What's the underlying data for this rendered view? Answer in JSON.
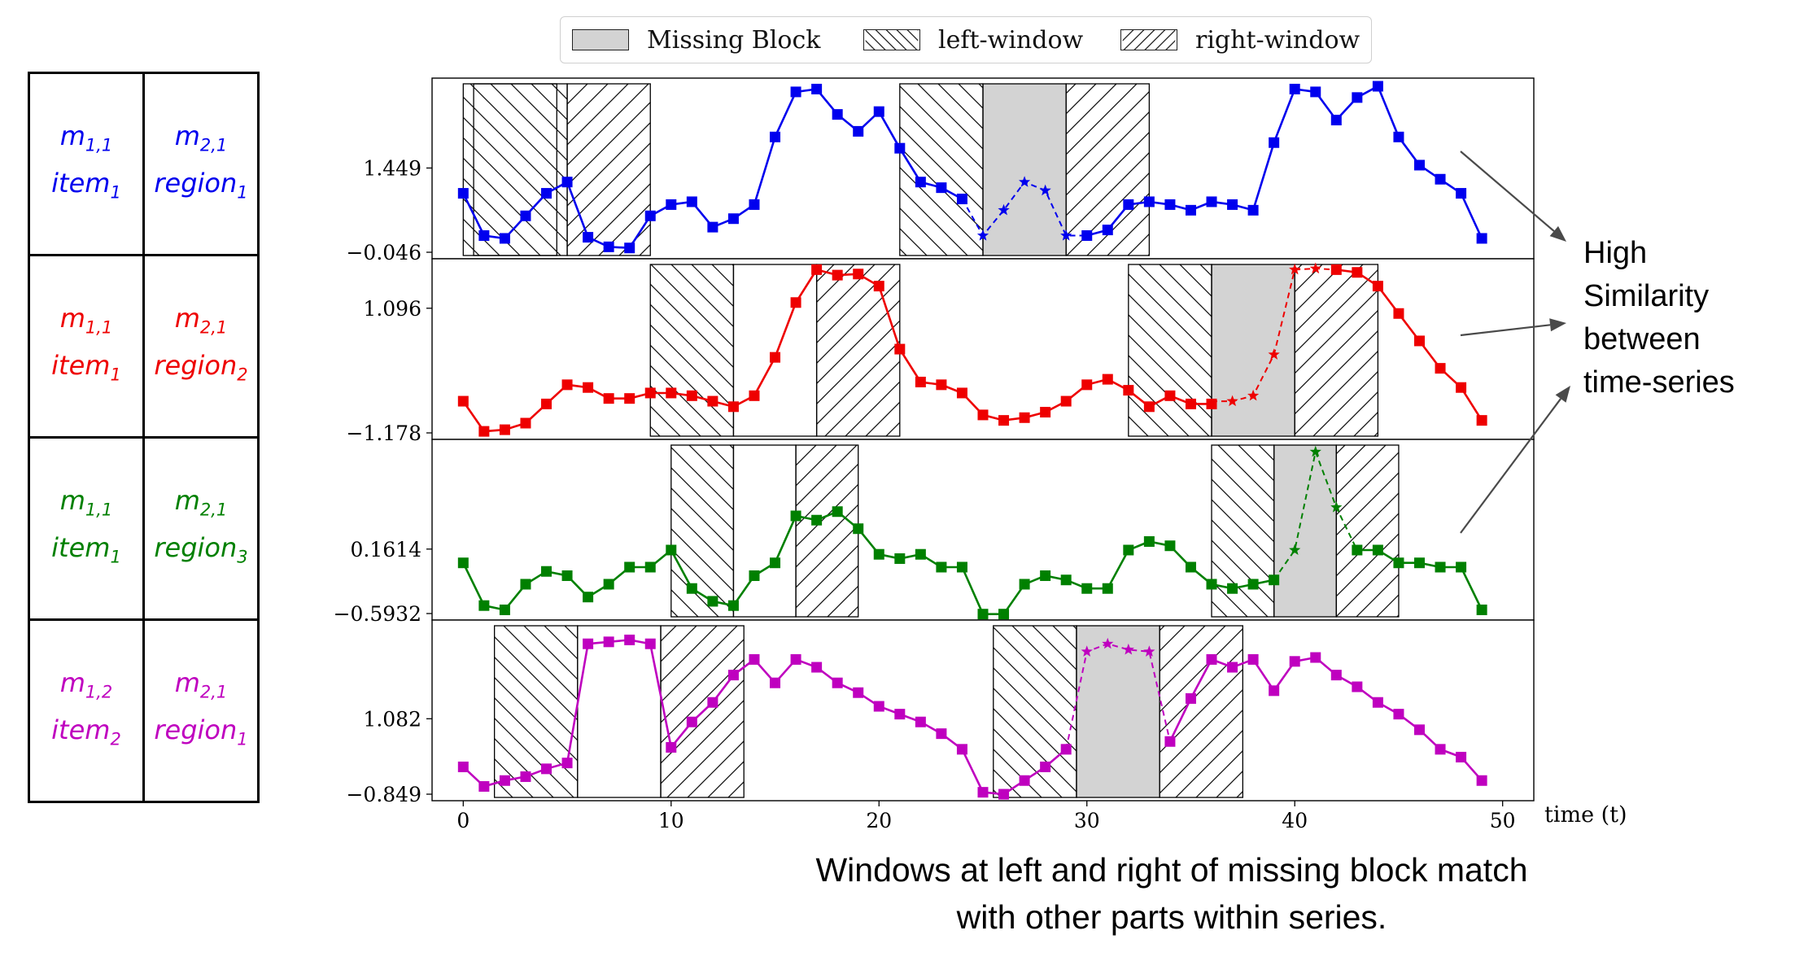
{
  "legend": {
    "missing_label": "Missing Block",
    "left_label": "left-window",
    "right_label": "right-window",
    "missing_color": "#d3d3d3"
  },
  "table": {
    "rows": [
      {
        "m1": "m",
        "m1_sub": "1,1",
        "item": "item",
        "item_sub": "1",
        "m2": "m",
        "m2_sub": "2,1",
        "region": "region",
        "region_sub": "1",
        "color": "#0000ee"
      },
      {
        "m1": "m",
        "m1_sub": "1,1",
        "item": "item",
        "item_sub": "1",
        "m2": "m",
        "m2_sub": "2,1",
        "region": "region",
        "region_sub": "2",
        "color": "#ee0000"
      },
      {
        "m1": "m",
        "m1_sub": "1,1",
        "item": "item",
        "item_sub": "1",
        "m2": "m",
        "m2_sub": "2,1",
        "region": "region",
        "region_sub": "3",
        "color": "#008000"
      },
      {
        "m1": "m",
        "m1_sub": "1,2",
        "item": "item",
        "item_sub": "2",
        "m2": "m",
        "m2_sub": "2,1",
        "region": "region",
        "region_sub": "1",
        "color": "#bf00bf"
      }
    ]
  },
  "annotation": {
    "lines": [
      "High",
      "Similarity",
      "between",
      "time-series"
    ]
  },
  "caption": {
    "lines": [
      "Windows at left and right of missing block match",
      "with other parts within series."
    ]
  },
  "chart_data": {
    "type": "line",
    "xlabel": "time (t)",
    "xlim": [
      -1.5,
      51.5
    ],
    "xticks": [
      0,
      10,
      20,
      30,
      40,
      50
    ],
    "series": [
      {
        "color": "#0000ee",
        "ylim": [
          -0.046,
          2.9
        ],
        "yticks": [
          1.449,
          -0.046
        ],
        "ytick_labels": [
          "1.449",
          "−0.046"
        ],
        "x": [
          0,
          1,
          2,
          3,
          4,
          5,
          6,
          7,
          8,
          9,
          10,
          11,
          12,
          13,
          14,
          15,
          16,
          17,
          18,
          19,
          20,
          21,
          22,
          23,
          24,
          30,
          31,
          32,
          33,
          34,
          35,
          36,
          37,
          38,
          39,
          40,
          41,
          42,
          43,
          44,
          45,
          46,
          47,
          48,
          49
        ],
        "values": [
          1.0,
          0.25,
          0.2,
          0.6,
          1.0,
          1.2,
          0.22,
          0.05,
          0.03,
          0.6,
          0.8,
          0.85,
          0.4,
          0.55,
          0.8,
          2.0,
          2.8,
          2.85,
          2.4,
          2.1,
          2.45,
          1.8,
          1.2,
          1.1,
          0.9,
          0.25,
          0.35,
          0.8,
          0.85,
          0.8,
          0.7,
          0.85,
          0.8,
          0.7,
          1.9,
          2.85,
          2.8,
          2.3,
          2.7,
          2.9,
          2.0,
          1.5,
          1.25,
          1.0,
          0.2
        ],
        "imputed_x": [
          24,
          25,
          26,
          27,
          28,
          29,
          30
        ],
        "imputed_values": [
          0.9,
          0.25,
          0.7,
          1.2,
          1.05,
          0.25,
          0.25
        ],
        "left_windows": [
          [
            0,
            5
          ],
          [
            21,
            25
          ]
        ],
        "right_windows": [
          [
            5,
            9
          ],
          [
            29,
            33
          ]
        ],
        "missing_block": [
          25,
          29
        ],
        "plain_block": [
          [
            0.5,
            4.5
          ]
        ]
      },
      {
        "color": "#ee0000",
        "ylim": [
          -1.178,
          1.85
        ],
        "yticks": [
          1.096,
          -1.178
        ],
        "ytick_labels": [
          "1.096",
          "−1.178"
        ],
        "x": [
          0,
          1,
          2,
          3,
          4,
          5,
          6,
          7,
          8,
          9,
          10,
          11,
          12,
          13,
          14,
          15,
          16,
          17,
          18,
          19,
          20,
          21,
          22,
          23,
          24,
          25,
          26,
          27,
          28,
          29,
          30,
          31,
          32,
          33,
          34,
          35,
          36,
          42,
          43,
          44,
          45,
          46,
          47,
          48,
          49
        ],
        "values": [
          -0.6,
          -1.15,
          -1.12,
          -1.0,
          -0.65,
          -0.3,
          -0.35,
          -0.55,
          -0.55,
          -0.45,
          -0.45,
          -0.5,
          -0.6,
          -0.7,
          -0.5,
          0.2,
          1.2,
          1.8,
          1.7,
          1.72,
          1.5,
          0.35,
          -0.25,
          -0.3,
          -0.45,
          -0.85,
          -0.95,
          -0.9,
          -0.8,
          -0.6,
          -0.3,
          -0.2,
          -0.4,
          -0.7,
          -0.5,
          -0.65,
          -0.65,
          1.8,
          1.75,
          1.5,
          1.0,
          0.5,
          0.0,
          -0.35,
          -0.95
        ],
        "imputed_x": [
          36,
          37,
          38,
          39,
          40,
          41,
          42
        ],
        "imputed_values": [
          -0.6,
          -0.6,
          -0.5,
          0.25,
          1.8,
          1.82,
          1.8
        ],
        "left_windows": [
          [
            9,
            13
          ],
          [
            32,
            36
          ]
        ],
        "right_windows": [
          [
            17,
            21
          ],
          [
            40,
            44
          ]
        ],
        "missing_block": [
          36,
          40
        ],
        "plain_block": [
          [
            13,
            17
          ]
        ]
      },
      {
        "color": "#008000",
        "ylim": [
          -0.5932,
          1.35
        ],
        "yticks": [
          0.1614,
          -0.5932
        ],
        "ytick_labels": [
          "0.1614",
          "−0.5932"
        ],
        "x": [
          0,
          1,
          2,
          3,
          4,
          5,
          6,
          7,
          8,
          9,
          10,
          11,
          12,
          13,
          14,
          15,
          16,
          17,
          18,
          19,
          20,
          21,
          22,
          23,
          24,
          25,
          26,
          27,
          28,
          29,
          30,
          31,
          32,
          33,
          34,
          35,
          36,
          37,
          38,
          39,
          43,
          44,
          45,
          46,
          47,
          48,
          49
        ],
        "values": [
          0.0,
          -0.5,
          -0.55,
          -0.25,
          -0.1,
          -0.15,
          -0.4,
          -0.25,
          -0.05,
          -0.05,
          0.15,
          -0.3,
          -0.45,
          -0.5,
          -0.15,
          0.0,
          0.55,
          0.5,
          0.6,
          0.4,
          0.1,
          0.05,
          0.1,
          -0.05,
          -0.05,
          -0.6,
          -0.6,
          -0.25,
          -0.15,
          -0.2,
          -0.3,
          -0.3,
          0.15,
          0.25,
          0.2,
          -0.05,
          -0.25,
          -0.3,
          -0.25,
          -0.2,
          0.15,
          0.15,
          0.0,
          0.0,
          -0.05,
          -0.05,
          -0.55
        ],
        "imputed_x": [
          39,
          40,
          41,
          42,
          43
        ],
        "imputed_values": [
          -0.2,
          0.15,
          1.3,
          0.65,
          0.15
        ],
        "left_windows": [
          [
            10,
            13
          ],
          [
            36,
            39
          ]
        ],
        "right_windows": [
          [
            16,
            19
          ],
          [
            42,
            45
          ]
        ],
        "missing_block": [
          39,
          42
        ],
        "plain_block": [
          [
            13,
            16
          ]
        ]
      },
      {
        "color": "#bf00bf",
        "ylim": [
          -0.849,
          3.4
        ],
        "yticks": [
          1.082,
          -0.849
        ],
        "ytick_labels": [
          "1.082",
          "−0.849"
        ],
        "x": [
          0,
          1,
          2,
          3,
          4,
          5,
          6,
          7,
          8,
          9,
          10,
          11,
          12,
          13,
          14,
          15,
          16,
          17,
          18,
          19,
          20,
          21,
          22,
          23,
          24,
          25,
          26,
          27,
          28,
          29,
          34,
          35,
          36,
          37,
          38,
          39,
          40,
          41,
          42,
          43,
          44,
          45,
          46,
          47,
          48,
          49
        ],
        "values": [
          -0.15,
          -0.65,
          -0.5,
          -0.4,
          -0.2,
          -0.05,
          3.0,
          3.05,
          3.1,
          3.0,
          0.35,
          1.0,
          1.5,
          2.2,
          2.6,
          2.0,
          2.6,
          2.4,
          2.0,
          1.75,
          1.4,
          1.2,
          1.0,
          0.7,
          0.3,
          -0.8,
          -0.85,
          -0.5,
          -0.15,
          0.3,
          0.5,
          1.6,
          2.6,
          2.4,
          2.6,
          1.8,
          2.55,
          2.65,
          2.2,
          1.9,
          1.5,
          1.2,
          0.8,
          0.3,
          0.1,
          -0.5
        ],
        "imputed_x": [
          29,
          30,
          31,
          32,
          33,
          34
        ],
        "imputed_values": [
          0.3,
          2.8,
          3.0,
          2.85,
          2.8,
          0.5
        ],
        "left_windows": [
          [
            1.5,
            5.5
          ],
          [
            25.5,
            29.5
          ]
        ],
        "right_windows": [
          [
            9.5,
            13.5
          ],
          [
            33.5,
            37.5
          ]
        ],
        "missing_block": [
          29.5,
          33.5
        ],
        "plain_block": [
          [
            5.5,
            9.5
          ]
        ]
      }
    ]
  }
}
